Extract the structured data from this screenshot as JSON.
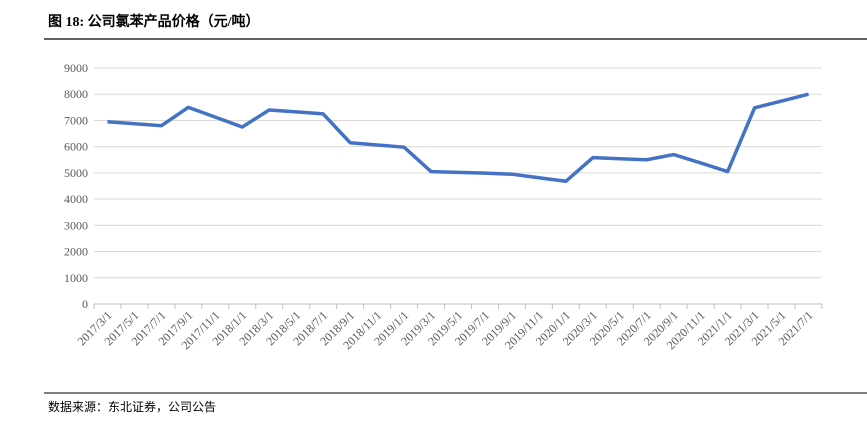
{
  "chart_data": {
    "type": "line",
    "title": "图 18:  公司氯苯产品价格（元/吨）",
    "source": "数据来源：东北证券，公司公告",
    "categories": [
      "2017/3/1",
      "2017/5/1",
      "2017/7/1",
      "2017/9/1",
      "2017/11/1",
      "2018/1/1",
      "2018/3/1",
      "2018/5/1",
      "2018/7/1",
      "2018/9/1",
      "2018/11/1",
      "2019/1/1",
      "2019/3/1",
      "2019/5/1",
      "2019/7/1",
      "2019/9/1",
      "2019/11/1",
      "2020/1/1",
      "2020/3/1",
      "2020/5/1",
      "2020/7/1",
      "2020/9/1",
      "2020/11/1",
      "2021/1/1",
      "2021/3/1",
      "2021/5/1",
      "2021/7/1"
    ],
    "values": [
      6950,
      6875,
      6800,
      7500,
      7125,
      6750,
      7400,
      7325,
      7250,
      6150,
      6065,
      5980,
      5050,
      5020,
      4990,
      4950,
      4815,
      4680,
      5580,
      5540,
      5500,
      5700,
      5380,
      5050,
      7480,
      7740,
      8000
    ],
    "color": "#4472c4",
    "ylim": [
      0,
      9000
    ],
    "yticks": [
      0,
      1000,
      2000,
      3000,
      4000,
      5000,
      6000,
      7000,
      8000,
      9000
    ],
    "grid": true
  }
}
